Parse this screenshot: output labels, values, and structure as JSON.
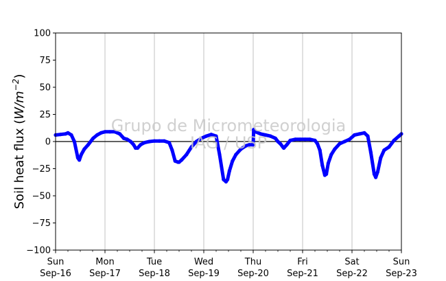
{
  "chart_data": {
    "type": "line",
    "ylabel_text": "Soil heat flux (",
    "ylabel_unit_base": "W/m",
    "ylabel_unit_exp": "−2",
    "ylabel_close": ")",
    "ylim": [
      -100,
      100
    ],
    "yticks": [
      100,
      75,
      50,
      25,
      0,
      -25,
      -50,
      -75,
      -100
    ],
    "xlim": [
      0,
      7
    ],
    "xticks": [
      {
        "x": 0,
        "day": "Sun",
        "date": "Sep-16"
      },
      {
        "x": 1,
        "day": "Mon",
        "date": "Sep-17"
      },
      {
        "x": 2,
        "day": "Tue",
        "date": "Sep-18"
      },
      {
        "x": 3,
        "day": "Wed",
        "date": "Sep-19"
      },
      {
        "x": 4,
        "day": "Thu",
        "date": "Sep-20"
      },
      {
        "x": 5,
        "day": "Fri",
        "date": "Sep-21"
      },
      {
        "x": 6,
        "day": "Sat",
        "date": "Sep-22"
      },
      {
        "x": 7,
        "day": "Sun",
        "date": "Sep-23"
      }
    ],
    "vertical_grid": true,
    "zero_line": true,
    "series": [
      {
        "color": "#0000ff",
        "x": [
          0.0,
          0.1,
          0.2,
          0.25,
          0.32,
          0.38,
          0.45,
          0.48,
          0.52,
          0.58,
          0.66,
          0.76,
          0.84,
          0.92,
          1.0,
          1.1,
          1.2,
          1.3,
          1.38,
          1.45,
          1.52,
          1.58,
          1.62,
          1.66,
          1.72,
          1.8,
          1.9,
          2.0,
          2.1,
          2.2,
          2.3,
          2.36,
          2.42,
          2.48,
          2.5,
          2.55,
          2.65,
          2.75,
          2.85,
          2.95,
          3.05,
          3.15,
          3.25,
          3.32,
          3.4,
          3.45,
          3.48,
          3.52,
          3.58,
          3.65,
          3.75,
          3.85,
          3.92,
          4.0,
          4.01,
          4.05,
          4.15,
          4.25,
          4.35,
          4.45,
          4.5,
          4.55,
          4.6,
          4.62,
          4.68,
          4.75,
          4.85,
          4.95,
          5.05,
          5.15,
          5.25,
          5.3,
          5.35,
          5.4,
          5.45,
          5.48,
          5.52,
          5.58,
          5.65,
          5.75,
          5.85,
          5.95,
          6.05,
          6.15,
          6.25,
          6.32,
          6.38,
          6.45,
          6.48,
          6.52,
          6.58,
          6.65,
          6.75,
          6.85,
          6.95,
          7.0
        ],
        "y": [
          6,
          6.5,
          7,
          8,
          6,
          0,
          -15,
          -17,
          -12,
          -7,
          -3,
          3,
          6,
          8,
          9,
          9,
          9,
          7,
          3,
          2,
          0,
          -3,
          -6,
          -6,
          -3,
          -1,
          0,
          0.5,
          0.5,
          0.5,
          -1,
          -8,
          -18,
          -19,
          -19,
          -17,
          -12,
          -5,
          0,
          3,
          5,
          6.5,
          5,
          -12,
          -35,
          -37,
          -35,
          -27,
          -18,
          -12,
          -7,
          -4,
          -3,
          -3,
          11,
          9,
          7,
          6,
          5,
          3,
          0,
          -2,
          -5,
          -6,
          -3,
          1,
          2,
          2,
          2,
          2,
          1,
          -2,
          -8,
          -22,
          -31,
          -30,
          -20,
          -12,
          -7,
          -2,
          0,
          2,
          6,
          7,
          8,
          5,
          -10,
          -30,
          -33,
          -28,
          -15,
          -8,
          -5,
          1,
          5,
          7
        ]
      }
    ],
    "watermark_line1": "Grupo de Micrometeorologia",
    "watermark_line2": "IAG / USP"
  }
}
